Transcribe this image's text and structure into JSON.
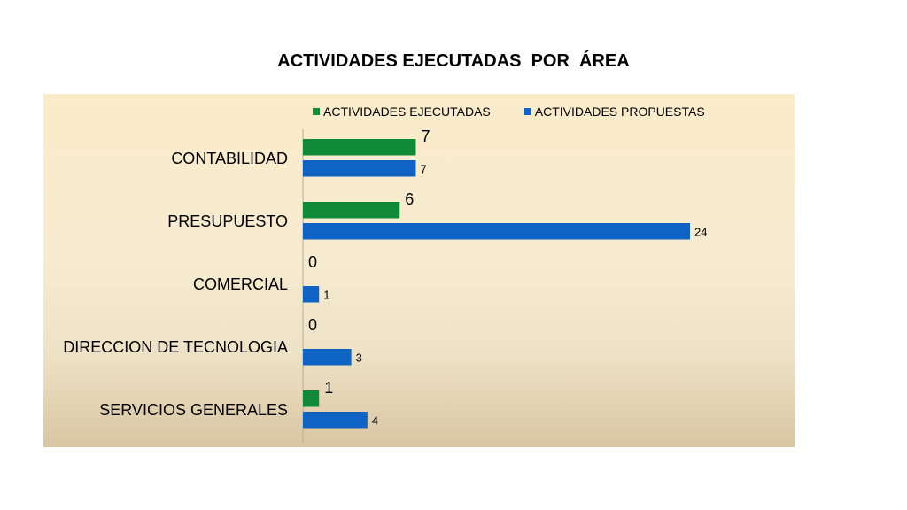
{
  "chart_data": {
    "type": "bar",
    "orientation": "horizontal",
    "title": "ACTIVIDADES EJECUTADAS  POR  ÁREA",
    "categories": [
      "CONTABILIDAD",
      "PRESUPUESTO",
      "COMERCIAL",
      "DIRECCION DE TECNOLOGIA",
      "SERVICIOS GENERALES"
    ],
    "series": [
      {
        "name": "ACTIVIDADES EJECUTADAS",
        "values": [
          7,
          6,
          0,
          0,
          1
        ],
        "color": "#0f8a37"
      },
      {
        "name": "ACTIVIDADES PROPUESTAS",
        "values": [
          7,
          24,
          1,
          3,
          4
        ],
        "color": "#0f63c4"
      }
    ],
    "xlim": [
      0,
      24
    ],
    "grid": false,
    "legend_position": "top"
  }
}
